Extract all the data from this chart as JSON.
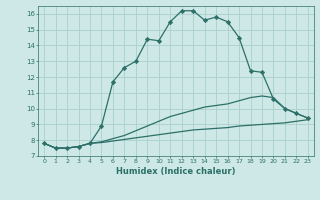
{
  "bg_color": "#cde8e6",
  "grid_color": "#aacfcc",
  "line_color": "#2d7068",
  "series1_x": [
    0,
    1,
    2,
    3,
    4,
    5,
    6,
    7,
    8,
    9,
    10,
    11,
    12,
    13,
    14,
    15,
    16,
    17,
    18,
    19,
    20,
    21,
    22,
    23
  ],
  "series1_y": [
    7.8,
    7.5,
    7.5,
    7.6,
    7.8,
    8.9,
    11.7,
    12.6,
    13.0,
    14.4,
    14.3,
    15.5,
    16.2,
    16.2,
    15.6,
    15.8,
    15.5,
    14.5,
    12.4,
    12.3,
    10.6,
    10.0,
    9.7,
    9.4
  ],
  "series2_x": [
    0,
    1,
    2,
    3,
    4,
    5,
    6,
    7,
    8,
    9,
    10,
    11,
    12,
    13,
    14,
    15,
    16,
    17,
    18,
    19,
    20,
    21,
    22,
    23
  ],
  "series2_y": [
    7.8,
    7.5,
    7.5,
    7.6,
    7.8,
    7.9,
    8.1,
    8.3,
    8.6,
    8.9,
    9.2,
    9.5,
    9.7,
    9.9,
    10.1,
    10.2,
    10.3,
    10.5,
    10.7,
    10.8,
    10.7,
    10.0,
    9.7,
    9.4
  ],
  "series3_x": [
    0,
    1,
    2,
    3,
    4,
    5,
    6,
    7,
    8,
    9,
    10,
    11,
    12,
    13,
    14,
    15,
    16,
    17,
    18,
    19,
    20,
    21,
    22,
    23
  ],
  "series3_y": [
    7.8,
    7.5,
    7.5,
    7.6,
    7.8,
    7.85,
    7.95,
    8.05,
    8.15,
    8.25,
    8.35,
    8.45,
    8.55,
    8.65,
    8.7,
    8.75,
    8.8,
    8.9,
    8.95,
    9.0,
    9.05,
    9.1,
    9.2,
    9.3
  ],
  "xlabel": "Humidex (Indice chaleur)",
  "xlim": [
    -0.5,
    23.5
  ],
  "ylim": [
    7,
    16.5
  ],
  "yticks": [
    7,
    8,
    9,
    10,
    11,
    12,
    13,
    14,
    15,
    16
  ],
  "xticks": [
    0,
    1,
    2,
    3,
    4,
    5,
    6,
    7,
    8,
    9,
    10,
    11,
    12,
    13,
    14,
    15,
    16,
    17,
    18,
    19,
    20,
    21,
    22,
    23
  ],
  "marker": "D",
  "markersize": 2.2,
  "linewidth": 0.9
}
